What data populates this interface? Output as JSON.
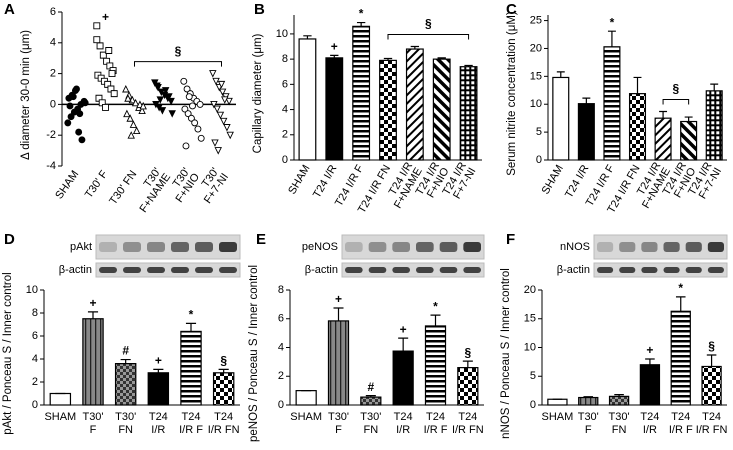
{
  "chart_data": [
    {
      "type": "dot",
      "panel": "A",
      "ylabel": "Δ diameter 30-0 min (μm)",
      "categories": [
        [
          "SHAM"
        ],
        [
          "T30' F"
        ],
        [
          "T30' FN"
        ],
        [
          "T30'",
          "F+NAME"
        ],
        [
          "T30'",
          "F+NIO"
        ],
        [
          "T30'",
          "F+7-NI"
        ]
      ],
      "values": [
        [
          -1.2,
          -0.8,
          -0.5,
          -0.3,
          0,
          0.2,
          0.4,
          0.6,
          0.9,
          -1.8,
          -2.3,
          0.1,
          -0.1,
          0.5,
          1.0,
          -0.6
        ],
        [
          5.1,
          3.8,
          3.2,
          2.8,
          2.5,
          2.2,
          1.9,
          1.7,
          1.5,
          1.3,
          1.0,
          0.7,
          0.4,
          0.1,
          -0.2,
          3.5,
          2.0,
          4.2
        ],
        [
          1.0,
          0.6,
          0.3,
          0.1,
          -0.2,
          -0.4,
          -0.6,
          -0.9,
          -1.3,
          -1.7,
          0,
          -0.1,
          0.4,
          -2.0
        ],
        [
          1.4,
          1.1,
          0.8,
          0.6,
          0.4,
          0.2,
          0,
          -0.2,
          -0.4,
          0.9,
          0.5,
          -0.6,
          1.2,
          0.3
        ],
        [
          1.5,
          1.0,
          0.7,
          0.4,
          0.2,
          0,
          -0.3,
          -0.6,
          -0.9,
          -1.2,
          -1.6,
          -2.2,
          -2.7,
          0.5,
          -0.1
        ],
        [
          2.0,
          1.5,
          1.1,
          0.8,
          0.5,
          0.2,
          0,
          -0.3,
          -0.7,
          -1.1,
          -1.5,
          -2.0,
          -2.5,
          -3.0,
          1.3,
          0.3
        ]
      ],
      "markers": [
        "circle-filled",
        "square-open",
        "triangle-open",
        "triangle-down-filled",
        "circle-open",
        "triangle-down-open"
      ],
      "annotations": [
        null,
        "+",
        null,
        null,
        null,
        null
      ],
      "bracket_label": "§",
      "ylim": [
        -4,
        6
      ],
      "yticks": [
        -4,
        -2,
        0,
        2,
        4,
        6
      ]
    },
    {
      "type": "bar",
      "panel": "B",
      "ylabel": "Capillary diameter (μm)",
      "categories": [
        [
          "SHAM"
        ],
        [
          "T24 I/R"
        ],
        [
          "T24 I/R F"
        ],
        [
          "T24 I/R FN"
        ],
        [
          "T24 I/R",
          "F+NAME"
        ],
        [
          "T24 I/R",
          "F+NIO"
        ],
        [
          "T24 I/R",
          "F+7-NI"
        ]
      ],
      "values": [
        9.6,
        8.1,
        10.6,
        7.9,
        8.8,
        8.0,
        7.4
      ],
      "errors": [
        0.25,
        0.2,
        0.3,
        0.15,
        0.2,
        0.1,
        0.1
      ],
      "patterns": [
        "white",
        "black",
        "hstripe",
        "check",
        "diag",
        "diag2",
        "grid"
      ],
      "annotations": [
        null,
        "+",
        "*",
        null,
        null,
        null,
        null
      ],
      "bracket_label": "§",
      "ylim": [
        0,
        11.5
      ],
      "yticks": [
        0,
        2,
        4,
        6,
        8,
        10
      ]
    },
    {
      "type": "bar",
      "panel": "C",
      "ylabel": "Serum nitrite concentration (μM)",
      "categories": [
        [
          "SHAM"
        ],
        [
          "T24 I/R"
        ],
        [
          "T24 I/R F"
        ],
        [
          "T24 I/R FN"
        ],
        [
          "T24 I/R",
          "F+NAME"
        ],
        [
          "T24 I/R",
          "F+NIO"
        ],
        [
          "T24 I/R",
          "F+7-NI"
        ]
      ],
      "values": [
        14.8,
        10.1,
        20.3,
        11.9,
        7.5,
        6.9,
        12.4
      ],
      "errors": [
        1.0,
        1.0,
        2.8,
        2.9,
        1.2,
        0.8,
        1.2
      ],
      "patterns": [
        "white",
        "black",
        "hstripe",
        "check",
        "diag",
        "diag2",
        "grid"
      ],
      "annotations": [
        null,
        null,
        "*",
        null,
        null,
        null,
        null
      ],
      "bracket_label": "§",
      "ylim": [
        0,
        26
      ],
      "yticks": [
        0,
        5,
        10,
        15,
        20,
        25
      ]
    },
    {
      "type": "bar",
      "panel": "D",
      "ylabel": "pAkt / Ponceau S / Inner control",
      "blot_labels": [
        "pAkt",
        "β-actin"
      ],
      "categories": [
        [
          "SHAM"
        ],
        [
          "T30'",
          "F"
        ],
        [
          "T30'",
          "FN"
        ],
        [
          "T24",
          "I/R"
        ],
        [
          "T24",
          "I/R F"
        ],
        [
          "T24",
          "I/R FN"
        ]
      ],
      "values": [
        1.0,
        7.5,
        3.6,
        2.8,
        6.4,
        2.8
      ],
      "errors": [
        0,
        0.6,
        0.35,
        0.3,
        0.7,
        0.3
      ],
      "patterns": [
        "white",
        "vstripe-gray",
        "check-gray",
        "black",
        "hstripe",
        "check"
      ],
      "annotations": [
        null,
        "+",
        "#",
        "+",
        "*",
        "§"
      ],
      "ylim": [
        0,
        10
      ],
      "yticks": [
        0,
        2,
        4,
        6,
        8,
        10
      ]
    },
    {
      "type": "bar",
      "panel": "E",
      "ylabel": "peNOS / Ponceau S / Inner control",
      "blot_labels": [
        "peNOS",
        "β-actin"
      ],
      "categories": [
        [
          "SHAM"
        ],
        [
          "T30'",
          "F"
        ],
        [
          "T30'",
          "FN"
        ],
        [
          "T24",
          "I/R"
        ],
        [
          "T24",
          "I/R F"
        ],
        [
          "T24",
          "I/R FN"
        ]
      ],
      "values": [
        1.0,
        5.85,
        0.55,
        3.75,
        5.5,
        2.6
      ],
      "errors": [
        0,
        0.9,
        0.1,
        0.9,
        0.75,
        0.45
      ],
      "patterns": [
        "white",
        "vstripe-gray",
        "check-gray",
        "black",
        "hstripe",
        "check"
      ],
      "annotations": [
        null,
        "+",
        "#",
        "+",
        "*",
        "§"
      ],
      "ylim": [
        0,
        8
      ],
      "yticks": [
        0,
        2,
        4,
        6,
        8
      ]
    },
    {
      "type": "bar",
      "panel": "F",
      "ylabel": "nNOS / Ponceau S / Inner control",
      "blot_labels": [
        "nNOS",
        "β-actin"
      ],
      "categories": [
        [
          "SHAM"
        ],
        [
          "T30'",
          "F"
        ],
        [
          "T30'",
          "FN"
        ],
        [
          "T24",
          "I/R"
        ],
        [
          "T24",
          "I/R F"
        ],
        [
          "T24",
          "I/R FN"
        ]
      ],
      "values": [
        1.0,
        1.3,
        1.5,
        7.0,
        16.3,
        6.7
      ],
      "errors": [
        0,
        0.15,
        0.3,
        1.0,
        2.5,
        2.0
      ],
      "patterns": [
        "white",
        "vstripe-gray",
        "check-gray",
        "black",
        "hstripe",
        "check"
      ],
      "annotations": [
        null,
        null,
        null,
        "+",
        "*",
        "§"
      ],
      "ylim": [
        0,
        20
      ],
      "yticks": [
        0,
        5,
        10,
        15,
        20
      ]
    }
  ]
}
